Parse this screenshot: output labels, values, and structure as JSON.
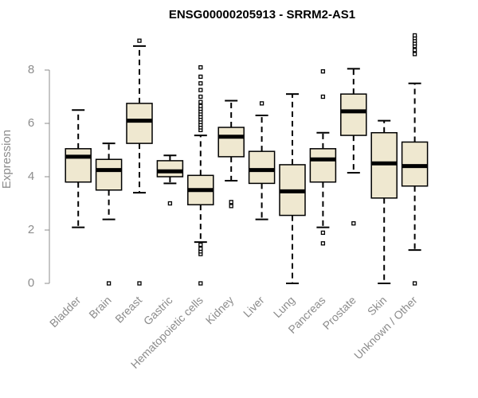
{
  "chart_data": {
    "type": "box",
    "title": "ENSG00000205913 - SRRM2-AS1",
    "ylabel": "Expression",
    "xlabel": "",
    "ylim": [
      0,
      9.4
    ],
    "yticks": [
      0,
      2,
      4,
      6,
      8
    ],
    "box_fill": "#efe8d0",
    "box_stroke": "#000000",
    "axis_color": "#8c8c8c",
    "categories": [
      "Bladder",
      "Brain",
      "Breast",
      "Gastric",
      "Hematopoietic cells",
      "Kidney",
      "Liver",
      "Lung",
      "Pancreas",
      "Prostate",
      "Skin",
      "Unknown / Other"
    ],
    "boxes": [
      {
        "whisker_low": 2.1,
        "q1": 3.8,
        "median": 4.75,
        "q3": 5.05,
        "whisker_high": 6.5,
        "outliers": []
      },
      {
        "whisker_low": 2.4,
        "q1": 3.5,
        "median": 4.25,
        "q3": 4.65,
        "whisker_high": 5.25,
        "outliers": [
          0.0
        ]
      },
      {
        "whisker_low": 3.4,
        "q1": 5.25,
        "median": 6.1,
        "q3": 6.75,
        "whisker_high": 8.9,
        "outliers": [
          0.0,
          9.1
        ]
      },
      {
        "whisker_low": 3.75,
        "q1": 4.0,
        "median": 4.2,
        "q3": 4.6,
        "whisker_high": 4.8,
        "outliers": [
          3.0
        ]
      },
      {
        "whisker_low": 1.55,
        "q1": 2.95,
        "median": 3.5,
        "q3": 4.05,
        "whisker_high": 5.55,
        "outliers": [
          0.0,
          1.1,
          1.2,
          1.3,
          1.45,
          5.75,
          5.85,
          5.95,
          6.05,
          6.15,
          6.25,
          6.35,
          6.45,
          6.55,
          6.65,
          6.8,
          7.0,
          7.25,
          7.5,
          7.75,
          8.1
        ]
      },
      {
        "whisker_low": 3.85,
        "q1": 4.75,
        "median": 5.5,
        "q3": 5.85,
        "whisker_high": 6.85,
        "outliers": [
          2.9,
          3.05
        ]
      },
      {
        "whisker_low": 2.4,
        "q1": 3.75,
        "median": 4.25,
        "q3": 4.95,
        "whisker_high": 6.3,
        "outliers": [
          6.75
        ]
      },
      {
        "whisker_low": 0.0,
        "q1": 2.55,
        "median": 3.45,
        "q3": 4.45,
        "whisker_high": 7.1,
        "outliers": []
      },
      {
        "whisker_low": 2.1,
        "q1": 3.8,
        "median": 4.65,
        "q3": 5.05,
        "whisker_high": 5.65,
        "outliers": [
          1.5,
          1.9,
          7.0,
          7.95
        ]
      },
      {
        "whisker_low": 4.15,
        "q1": 5.55,
        "median": 6.45,
        "q3": 7.1,
        "whisker_high": 8.05,
        "outliers": [
          2.25
        ]
      },
      {
        "whisker_low": 0.0,
        "q1": 3.2,
        "median": 4.5,
        "q3": 5.65,
        "whisker_high": 6.1,
        "outliers": []
      },
      {
        "whisker_low": 1.25,
        "q1": 3.65,
        "median": 4.4,
        "q3": 5.3,
        "whisker_high": 7.5,
        "outliers": [
          0.0,
          8.6,
          8.75,
          8.9,
          9.0,
          9.1,
          9.2,
          9.3
        ]
      }
    ]
  }
}
